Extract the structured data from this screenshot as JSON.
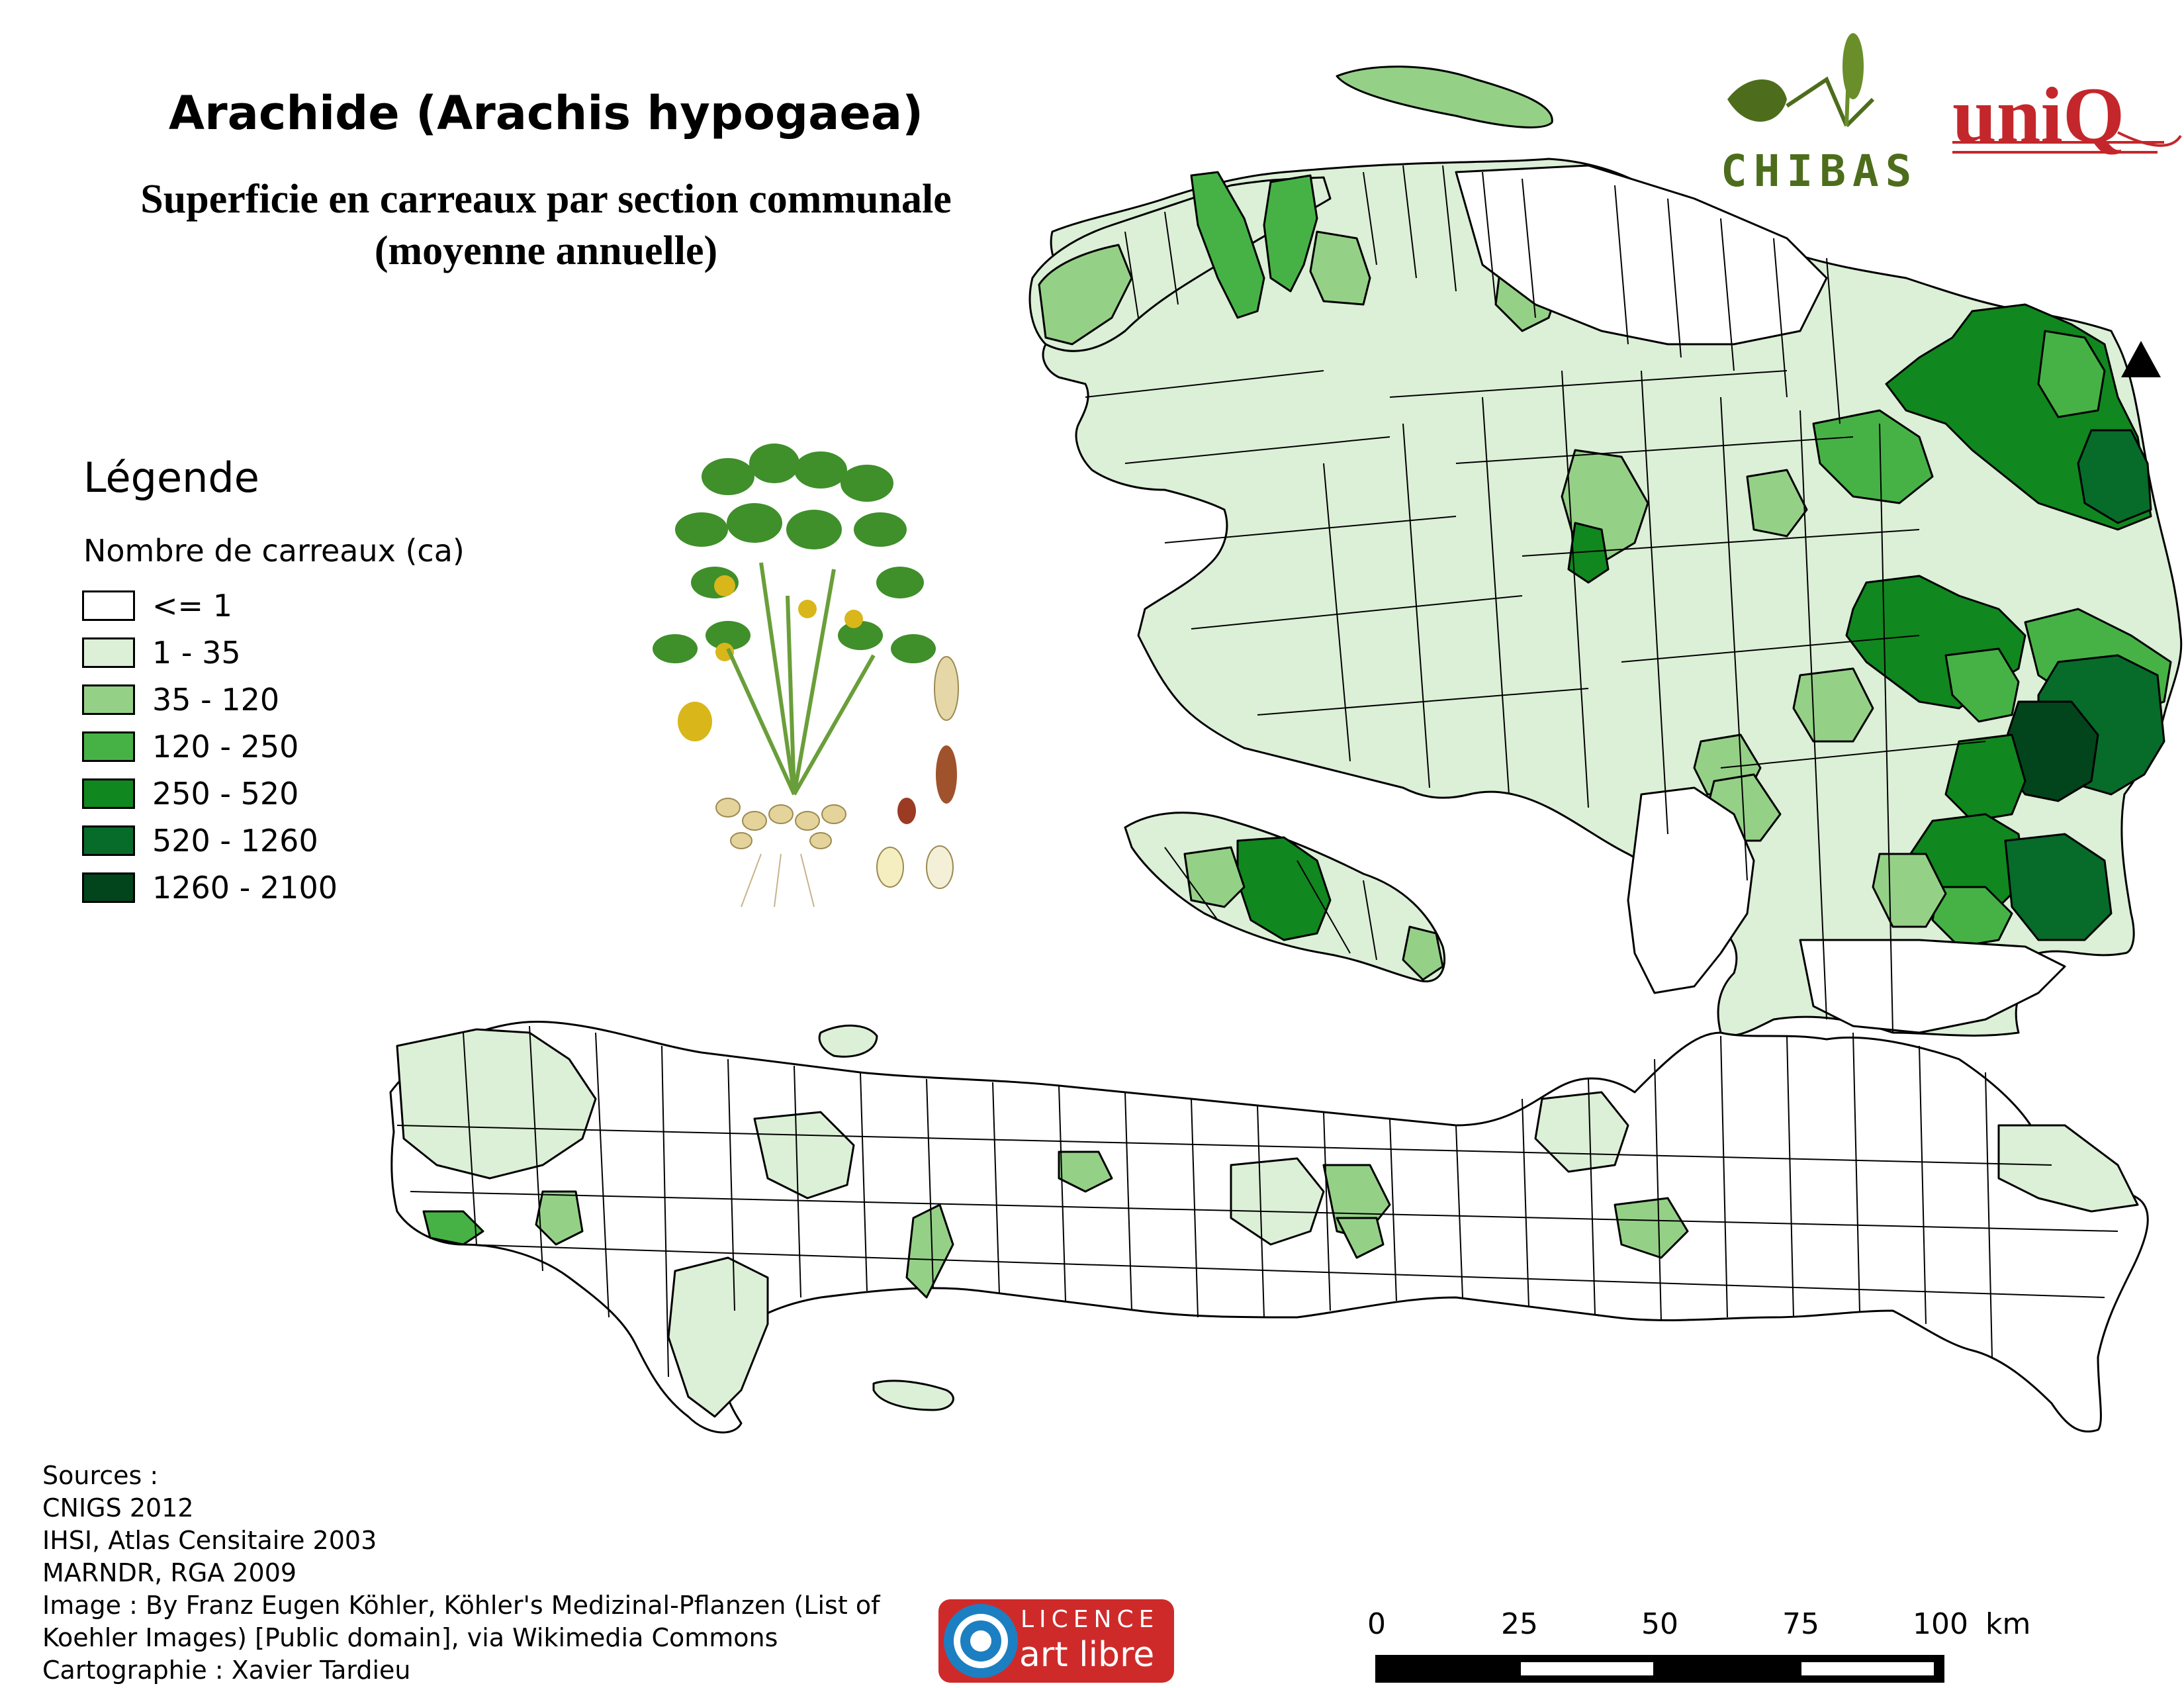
{
  "title": "Arachide (Arachis hypogaea)",
  "subtitle_line1": "Superficie en carreaux par section communale",
  "subtitle_line2": "(moyenne annuelle)",
  "legend": {
    "title": "Légende",
    "subtitle": "Nombre de carreaux (ca)",
    "classes": [
      {
        "label": "<= 1",
        "color": "#ffffff"
      },
      {
        "label": "1 - 35",
        "color": "#dcefd7"
      },
      {
        "label": "35 - 120",
        "color": "#95d087"
      },
      {
        "label": "120 - 250",
        "color": "#46b246"
      },
      {
        "label": "250 - 520",
        "color": "#11871f"
      },
      {
        "label": "520 - 1260",
        "color": "#076b2a"
      },
      {
        "label": "1260 - 2100",
        "color": "#02441b"
      }
    ]
  },
  "sources": [
    "Sources :",
    "CNIGS 2012",
    "IHSI, Atlas Censitaire 2003",
    "MARNDR, RGA 2009",
    "Image : By Franz Eugen Köhler, Köhler's Medizinal-Pflanzen (List of",
    "Koehler Images) [Public domain], via Wikimedia Commons",
    "Cartographie : Xavier Tardieu"
  ],
  "scale_bar": {
    "ticks": [
      "0",
      "25",
      "50",
      "75",
      "100"
    ],
    "unit": "km"
  },
  "logos": {
    "chibas": "CHIBAS",
    "uniq": "uniQ",
    "licence_line1": "LICENCE",
    "licence_line2": "art libre"
  },
  "map": {
    "north_arrow_icon": "north-arrow-icon",
    "regions": [
      {
        "name": "tortuga-island",
        "class": "35 - 120"
      },
      {
        "name": "northwest-peninsula",
        "class": "1 - 35"
      },
      {
        "name": "north-plain",
        "class": "<= 1"
      },
      {
        "name": "northeast",
        "class": "250 - 520"
      },
      {
        "name": "central-plateau-east",
        "class": "520 - 1260"
      },
      {
        "name": "central-plateau-southeast",
        "class": "1260 - 2100"
      },
      {
        "name": "artibonite",
        "class": "1 - 35"
      },
      {
        "name": "gonave-island",
        "class": "35 - 120"
      },
      {
        "name": "gonave-center",
        "class": "250 - 520"
      },
      {
        "name": "west",
        "class": "<= 1"
      },
      {
        "name": "southern-peninsula",
        "class": "<= 1"
      },
      {
        "name": "grand-anse",
        "class": "1 - 35"
      },
      {
        "name": "south-east",
        "class": "<= 1"
      }
    ]
  }
}
